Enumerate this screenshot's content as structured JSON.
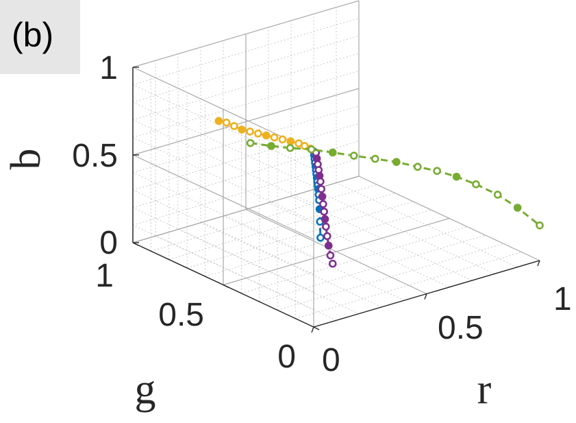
{
  "panel_label": "(b)",
  "chart_data": {
    "type": "scatter3d",
    "title": "",
    "xlabel": "r",
    "ylabel": "g",
    "zlabel": "b",
    "xlim": [
      0,
      1
    ],
    "ylim": [
      0,
      1
    ],
    "zlim": [
      0,
      1
    ],
    "x_ticks": [
      "0",
      "0.5",
      "1"
    ],
    "y_ticks": [
      "0",
      "0.5",
      "1"
    ],
    "z_ticks": [
      "0",
      "0.5",
      "1"
    ],
    "grid": true,
    "legend": "none",
    "colors": [
      "#0072BD",
      "#D95319",
      "#EDB120",
      "#7E2F8E",
      "#77AC30"
    ],
    "series": [
      {
        "color": "#0072BD",
        "points": [
          [
            0.0,
            0.0,
            1.0
          ],
          [
            0.01,
            0.01,
            0.97
          ],
          [
            0.02,
            0.02,
            0.94
          ],
          [
            0.03,
            0.03,
            0.91
          ],
          [
            0.04,
            0.04,
            0.88
          ],
          [
            0.05,
            0.05,
            0.85
          ],
          [
            0.06,
            0.06,
            0.82
          ],
          [
            0.07,
            0.07,
            0.79
          ],
          [
            0.08,
            0.08,
            0.76
          ],
          [
            0.09,
            0.09,
            0.73
          ],
          [
            0.1,
            0.1,
            0.7
          ],
          [
            0.11,
            0.11,
            0.66
          ],
          [
            0.12,
            0.12,
            0.62
          ],
          [
            0.13,
            0.13,
            0.56
          ],
          [
            0.14,
            0.14,
            0.48
          ],
          [
            0.15,
            0.15,
            0.38
          ]
        ]
      },
      {
        "color": "#EDB120",
        "points": [
          [
            0.05,
            0.05,
            0.95
          ],
          [
            0.09,
            0.13,
            0.92
          ],
          [
            0.12,
            0.2,
            0.89
          ],
          [
            0.15,
            0.27,
            0.86
          ],
          [
            0.17,
            0.34,
            0.83
          ],
          [
            0.19,
            0.41,
            0.8
          ],
          [
            0.21,
            0.48,
            0.77
          ],
          [
            0.23,
            0.55,
            0.74
          ],
          [
            0.25,
            0.62,
            0.71
          ],
          [
            0.27,
            0.69,
            0.68
          ],
          [
            0.29,
            0.76,
            0.65
          ],
          [
            0.32,
            0.84,
            0.62
          ],
          [
            0.35,
            0.92,
            0.59
          ],
          [
            0.38,
            1.0,
            0.55
          ]
        ]
      },
      {
        "color": "#7E2F8E",
        "points": [
          [
            0.05,
            0.05,
            0.95
          ],
          [
            0.07,
            0.07,
            0.9
          ],
          [
            0.09,
            0.09,
            0.85
          ],
          [
            0.11,
            0.11,
            0.8
          ],
          [
            0.13,
            0.13,
            0.75
          ],
          [
            0.15,
            0.15,
            0.7
          ],
          [
            0.17,
            0.17,
            0.64
          ],
          [
            0.19,
            0.19,
            0.58
          ],
          [
            0.21,
            0.21,
            0.52
          ],
          [
            0.23,
            0.23,
            0.46
          ],
          [
            0.25,
            0.25,
            0.4
          ],
          [
            0.27,
            0.27,
            0.34
          ],
          [
            0.3,
            0.3,
            0.26
          ],
          [
            0.33,
            0.33,
            0.18
          ],
          [
            0.37,
            0.37,
            0.09
          ],
          [
            0.42,
            0.42,
            0.0
          ]
        ]
      },
      {
        "color": "#77AC30",
        "points": [
          [
            0.0,
            0.35,
            0.88
          ],
          [
            0.06,
            0.31,
            0.86
          ],
          [
            0.12,
            0.28,
            0.84
          ],
          [
            0.19,
            0.25,
            0.82
          ],
          [
            0.26,
            0.22,
            0.79
          ],
          [
            0.33,
            0.19,
            0.76
          ],
          [
            0.4,
            0.16,
            0.73
          ],
          [
            0.47,
            0.13,
            0.7
          ],
          [
            0.54,
            0.1,
            0.66
          ],
          [
            0.61,
            0.08,
            0.62
          ],
          [
            0.68,
            0.06,
            0.57
          ],
          [
            0.75,
            0.04,
            0.51
          ],
          [
            0.83,
            0.02,
            0.43
          ],
          [
            0.91,
            0.01,
            0.33
          ],
          [
            1.0,
            0.0,
            0.2
          ]
        ]
      }
    ]
  }
}
